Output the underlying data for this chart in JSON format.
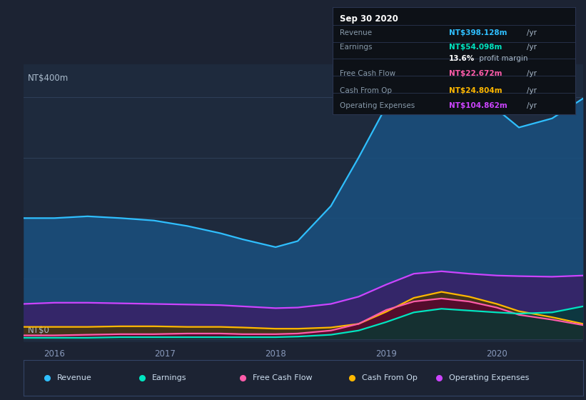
{
  "background_color": "#1c2333",
  "plot_bg_color": "#1e2a3d",
  "grid_color": "#2e3f58",
  "title_box_bg": "#0d1117",
  "title_box_border": "#2a3550",
  "ylabel_top": "NT$400m",
  "ylabel_bottom": "NT$0",
  "x_ticks": [
    2016,
    2017,
    2018,
    2019,
    2020
  ],
  "x_range": [
    2015.72,
    2020.78
  ],
  "y_range": [
    -5,
    455
  ],
  "y_gridlines": [
    0,
    100,
    200,
    300,
    400
  ],
  "info_box": {
    "date": "Sep 30 2020",
    "rows": [
      {
        "label": "Revenue",
        "value": "NT$398.128m",
        "value_color": "#2fbfff",
        "unit": "/yr",
        "bold_value": true
      },
      {
        "label": "Earnings",
        "value": "NT$54.098m",
        "value_color": "#00e5c0",
        "unit": "/yr",
        "bold_value": true
      },
      {
        "label": "",
        "value": "13.6%",
        "value_color": "#ffffff",
        "unit": " profit margin",
        "bold_value": true
      },
      {
        "label": "Free Cash Flow",
        "value": "NT$22.672m",
        "value_color": "#ff5caa",
        "unit": "/yr",
        "bold_value": true
      },
      {
        "label": "Cash From Op",
        "value": "NT$24.804m",
        "value_color": "#ffb800",
        "unit": "/yr",
        "bold_value": true
      },
      {
        "label": "Operating Expenses",
        "value": "NT$104.862m",
        "value_color": "#cc44ff",
        "unit": "/yr",
        "bold_value": true
      }
    ]
  },
  "series": {
    "Revenue": {
      "line_color": "#2fbfff",
      "fill_color": "#1a5080",
      "fill_alpha": 0.85,
      "x": [
        2015.72,
        2016.0,
        2016.3,
        2016.6,
        2016.9,
        2017.2,
        2017.5,
        2017.7,
        2018.0,
        2018.2,
        2018.5,
        2018.75,
        2019.0,
        2019.25,
        2019.5,
        2019.75,
        2020.0,
        2020.2,
        2020.5,
        2020.78
      ],
      "y": [
        200,
        200,
        203,
        200,
        196,
        187,
        175,
        165,
        152,
        162,
        220,
        300,
        385,
        435,
        448,
        435,
        380,
        350,
        365,
        398
      ]
    },
    "Operating Expenses": {
      "line_color": "#cc44ff",
      "fill_color": "#3d1a66",
      "fill_alpha": 0.75,
      "x": [
        2015.72,
        2016.0,
        2016.3,
        2016.6,
        2016.9,
        2017.2,
        2017.5,
        2017.7,
        2018.0,
        2018.2,
        2018.5,
        2018.75,
        2019.0,
        2019.25,
        2019.5,
        2019.75,
        2020.0,
        2020.2,
        2020.5,
        2020.78
      ],
      "y": [
        58,
        60,
        60,
        59,
        58,
        57,
        56,
        54,
        51,
        52,
        58,
        70,
        90,
        108,
        112,
        108,
        105,
        104,
        103,
        105
      ]
    },
    "Cash From Op": {
      "line_color": "#ffb800",
      "fill_color": "#4a3800",
      "fill_alpha": 0.75,
      "x": [
        2015.72,
        2016.0,
        2016.3,
        2016.6,
        2016.9,
        2017.2,
        2017.5,
        2017.7,
        2018.0,
        2018.2,
        2018.5,
        2018.75,
        2019.0,
        2019.25,
        2019.5,
        2019.75,
        2020.0,
        2020.2,
        2020.5,
        2020.78
      ],
      "y": [
        20,
        20,
        20,
        21,
        21,
        20,
        20,
        19,
        17,
        17,
        19,
        25,
        45,
        68,
        78,
        70,
        58,
        46,
        36,
        25
      ]
    },
    "Free Cash Flow": {
      "line_color": "#ff5caa",
      "fill_color": "#5a0033",
      "fill_alpha": 0.75,
      "x": [
        2015.72,
        2016.0,
        2016.3,
        2016.6,
        2016.9,
        2017.2,
        2017.5,
        2017.7,
        2018.0,
        2018.2,
        2018.5,
        2018.75,
        2019.0,
        2019.25,
        2019.5,
        2019.75,
        2020.0,
        2020.2,
        2020.5,
        2020.78
      ],
      "y": [
        6,
        6,
        7,
        8,
        8,
        9,
        9,
        8,
        8,
        9,
        14,
        25,
        48,
        62,
        67,
        62,
        52,
        40,
        32,
        23
      ]
    },
    "Earnings": {
      "line_color": "#00e5c0",
      "fill_color": "#003d33",
      "fill_alpha": 0.75,
      "x": [
        2015.72,
        2016.0,
        2016.3,
        2016.6,
        2016.9,
        2017.2,
        2017.5,
        2017.7,
        2018.0,
        2018.2,
        2018.5,
        2018.75,
        2019.0,
        2019.25,
        2019.5,
        2019.75,
        2020.0,
        2020.2,
        2020.5,
        2020.78
      ],
      "y": [
        2,
        2,
        2,
        3,
        3,
        3,
        3,
        3,
        3,
        4,
        7,
        14,
        28,
        44,
        50,
        47,
        44,
        42,
        44,
        54
      ]
    }
  },
  "series_draw_order": [
    "Revenue",
    "Operating Expenses",
    "Cash From Op",
    "Free Cash Flow",
    "Earnings"
  ],
  "legend": [
    {
      "label": "Revenue",
      "color": "#2fbfff"
    },
    {
      "label": "Earnings",
      "color": "#00e5c0"
    },
    {
      "label": "Free Cash Flow",
      "color": "#ff5caa"
    },
    {
      "label": "Cash From Op",
      "color": "#ffb800"
    },
    {
      "label": "Operating Expenses",
      "color": "#cc44ff"
    }
  ]
}
